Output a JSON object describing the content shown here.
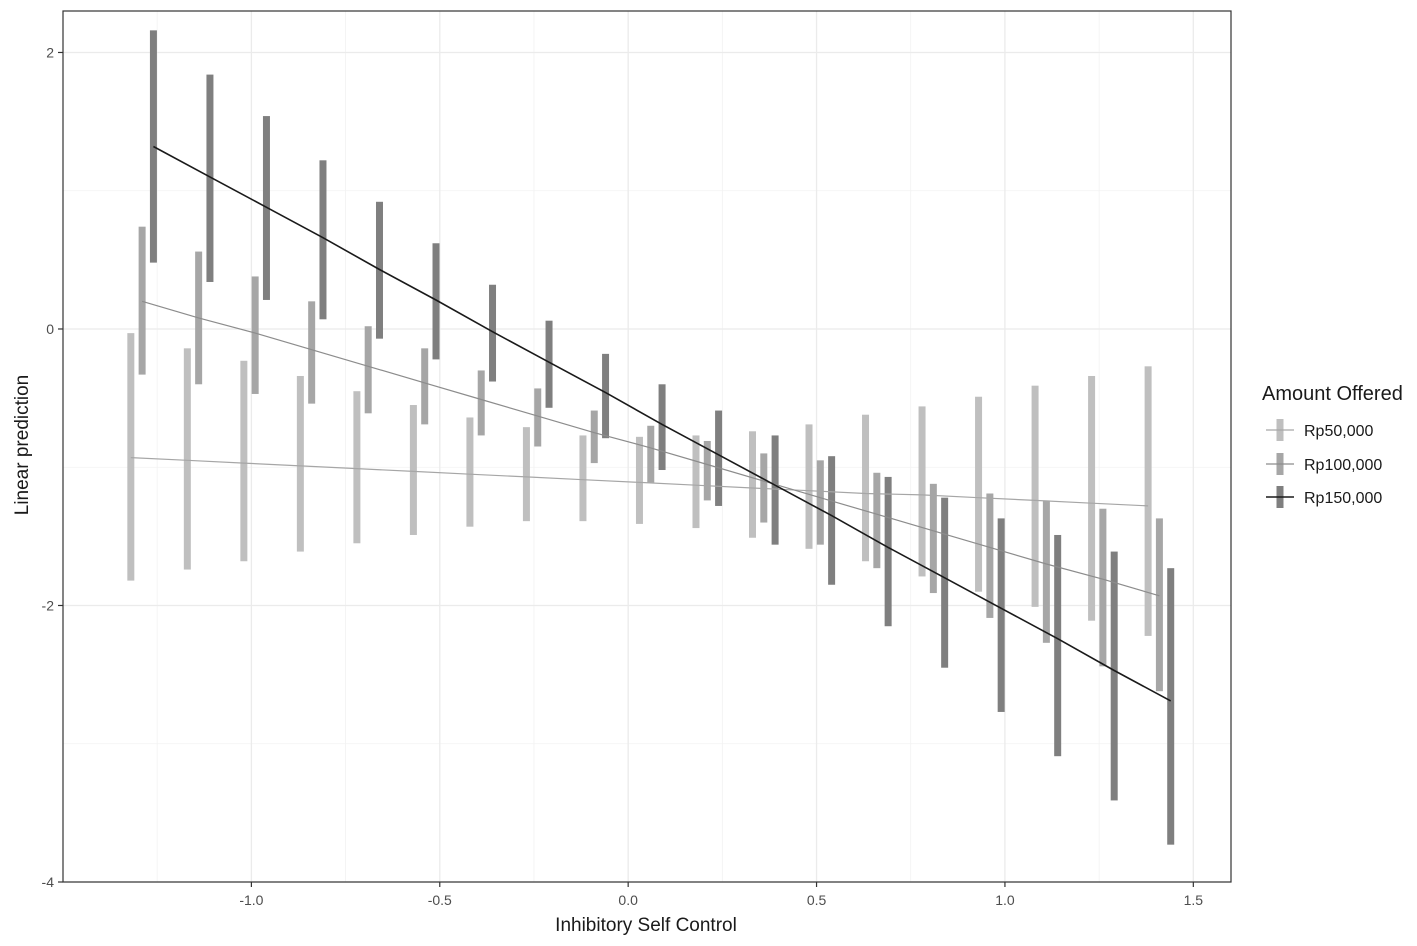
{
  "chart_data": {
    "type": "line",
    "title": "",
    "xlabel": "Inhibitory Self Control",
    "ylabel": "Linear prediction",
    "xlim": [
      -1.5,
      1.6
    ],
    "ylim": [
      -4.0,
      2.3
    ],
    "x_ticks": [
      -1.0,
      -0.5,
      0.0,
      0.5,
      1.0,
      1.5
    ],
    "x_tick_labels": [
      "-1.0",
      "-0.5",
      "0.0",
      "0.5",
      "1.0",
      "1.5"
    ],
    "y_ticks": [
      -4,
      -2,
      0,
      2
    ],
    "y_tick_labels": [
      "-4",
      "-2",
      "0",
      "2"
    ],
    "grid": true,
    "legend": {
      "title": "Amount Offered",
      "position": "right"
    },
    "series": [
      {
        "name": "Rp50,000",
        "color": "#bfbfbf",
        "line_color": "#a6a6a6",
        "x": [
          -1.32,
          -1.17,
          -1.02,
          -0.87,
          -0.72,
          -0.57,
          -0.42,
          -0.27,
          -0.12,
          0.03,
          0.18,
          0.33,
          0.48,
          0.63,
          0.78,
          0.93,
          1.08,
          1.23,
          1.38
        ],
        "y": [
          -0.93,
          -0.95,
          -0.97,
          -0.99,
          -1.01,
          -1.03,
          -1.05,
          -1.07,
          -1.09,
          -1.11,
          -1.13,
          -1.15,
          -1.17,
          -1.19,
          -1.2,
          -1.22,
          -1.24,
          -1.26,
          -1.28
        ],
        "lower": [
          -1.82,
          -1.74,
          -1.68,
          -1.61,
          -1.55,
          -1.49,
          -1.43,
          -1.39,
          -1.39,
          -1.41,
          -1.44,
          -1.51,
          -1.59,
          -1.68,
          -1.79,
          -1.9,
          -2.01,
          -2.11,
          -2.22
        ],
        "upper": [
          -0.03,
          -0.14,
          -0.23,
          -0.34,
          -0.45,
          -0.55,
          -0.64,
          -0.71,
          -0.77,
          -0.78,
          -0.77,
          -0.74,
          -0.69,
          -0.62,
          -0.56,
          -0.49,
          -0.41,
          -0.34,
          -0.27
        ]
      },
      {
        "name": "Rp100,000",
        "color": "#a6a6a6",
        "line_color": "#8c8c8c",
        "x": [
          -1.29,
          -1.14,
          -0.99,
          -0.84,
          -0.69,
          -0.54,
          -0.39,
          -0.24,
          -0.09,
          0.06,
          0.21,
          0.36,
          0.51,
          0.66,
          0.81,
          0.96,
          1.11,
          1.26,
          1.41
        ],
        "y": [
          0.2,
          0.08,
          -0.03,
          -0.15,
          -0.27,
          -0.39,
          -0.51,
          -0.63,
          -0.75,
          -0.86,
          -0.98,
          -1.1,
          -1.22,
          -1.34,
          -1.46,
          -1.58,
          -1.7,
          -1.81,
          -1.93
        ],
        "lower": [
          -0.33,
          -0.4,
          -0.47,
          -0.54,
          -0.61,
          -0.69,
          -0.77,
          -0.85,
          -0.97,
          -1.11,
          -1.24,
          -1.4,
          -1.56,
          -1.73,
          -1.91,
          -2.09,
          -2.27,
          -2.44,
          -2.62
        ],
        "upper": [
          0.74,
          0.56,
          0.38,
          0.2,
          0.02,
          -0.14,
          -0.3,
          -0.43,
          -0.59,
          -0.7,
          -0.81,
          -0.9,
          -0.95,
          -1.04,
          -1.12,
          -1.19,
          -1.24,
          -1.3,
          -1.37
        ]
      },
      {
        "name": "Rp150,000",
        "color": "#7f7f7f",
        "line_color": "#1a1a1a",
        "x": [
          -1.26,
          -1.11,
          -0.96,
          -0.81,
          -0.66,
          -0.51,
          -0.36,
          -0.21,
          -0.06,
          0.09,
          0.24,
          0.39,
          0.54,
          0.69,
          0.84,
          0.99,
          1.14,
          1.29,
          1.44
        ],
        "y": [
          1.32,
          1.1,
          0.88,
          0.66,
          0.43,
          0.21,
          -0.02,
          -0.24,
          -0.46,
          -0.69,
          -0.91,
          -1.13,
          -1.35,
          -1.58,
          -1.8,
          -2.02,
          -2.24,
          -2.47,
          -2.69
        ],
        "lower": [
          0.48,
          0.34,
          0.21,
          0.07,
          -0.07,
          -0.22,
          -0.38,
          -0.57,
          -0.79,
          -1.02,
          -1.28,
          -1.56,
          -1.85,
          -2.15,
          -2.45,
          -2.77,
          -3.09,
          -3.41,
          -3.73
        ],
        "upper": [
          2.16,
          1.84,
          1.54,
          1.22,
          0.92,
          0.62,
          0.32,
          0.06,
          -0.18,
          -0.4,
          -0.59,
          -0.77,
          -0.92,
          -1.07,
          -1.22,
          -1.37,
          -1.49,
          -1.61,
          -1.73
        ]
      }
    ]
  }
}
